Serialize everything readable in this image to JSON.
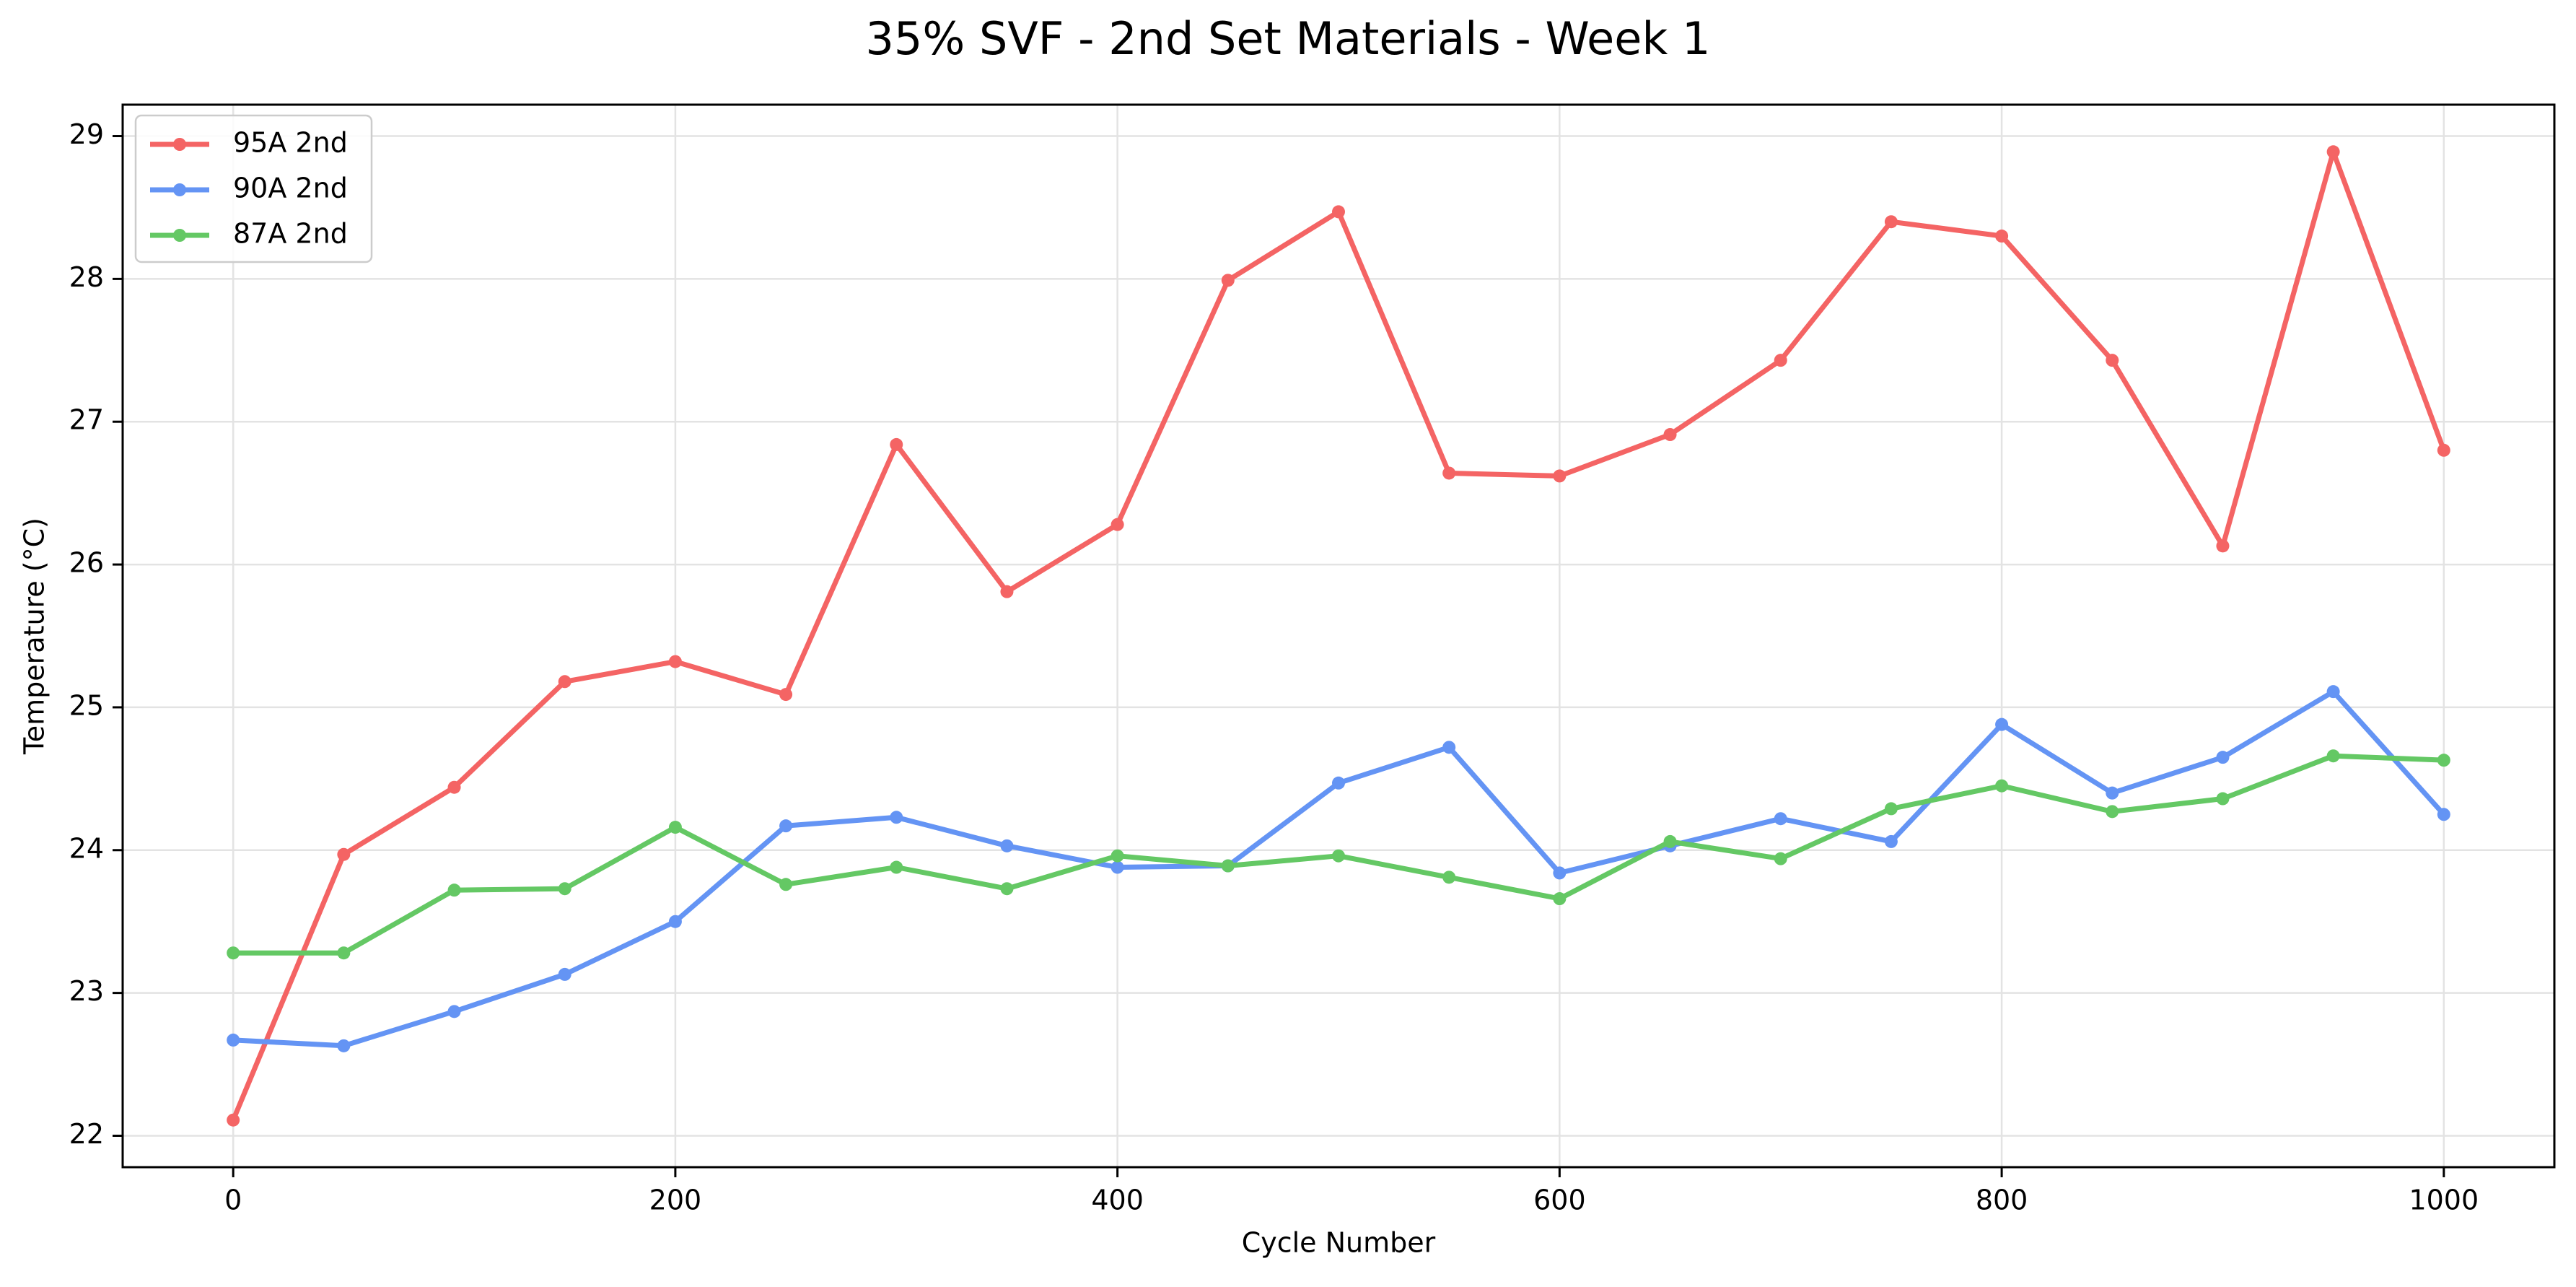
{
  "chart_data": {
    "type": "line",
    "title": "35% SVF - 2nd Set Materials - Week 1",
    "xlabel": "Cycle Number",
    "ylabel": "Temperature (°C)",
    "xlim": [
      -50,
      1050
    ],
    "ylim": [
      21.78,
      29.22
    ],
    "xticks": [
      0,
      200,
      400,
      600,
      800,
      1000
    ],
    "yticks": [
      22,
      23,
      24,
      25,
      26,
      27,
      28,
      29
    ],
    "grid": true,
    "legend_position": "top-left",
    "x": [
      0,
      50,
      100,
      150,
      200,
      250,
      300,
      350,
      400,
      450,
      500,
      550,
      600,
      650,
      700,
      750,
      800,
      850,
      900,
      950,
      1000
    ],
    "series": [
      {
        "name": "95A 2nd",
        "color": "#f46464",
        "values": [
          22.11,
          23.97,
          24.44,
          25.18,
          25.32,
          25.09,
          26.84,
          25.81,
          26.28,
          27.99,
          28.47,
          26.64,
          26.62,
          26.91,
          27.43,
          28.4,
          28.3,
          27.43,
          26.13,
          28.89,
          26.8
        ]
      },
      {
        "name": "90A 2nd",
        "color": "#6494f4",
        "values": [
          22.67,
          22.63,
          22.87,
          23.13,
          23.5,
          24.17,
          24.23,
          24.03,
          23.88,
          23.89,
          24.47,
          24.72,
          23.84,
          24.03,
          24.22,
          24.06,
          24.88,
          24.4,
          24.65,
          25.11,
          24.25
        ]
      },
      {
        "name": "87A 2nd",
        "color": "#64c864",
        "values": [
          23.28,
          23.28,
          23.72,
          23.73,
          24.16,
          23.76,
          23.88,
          23.73,
          23.96,
          23.89,
          23.96,
          23.81,
          23.66,
          24.06,
          23.94,
          24.29,
          24.45,
          24.27,
          24.36,
          24.66,
          24.63
        ]
      }
    ]
  }
}
